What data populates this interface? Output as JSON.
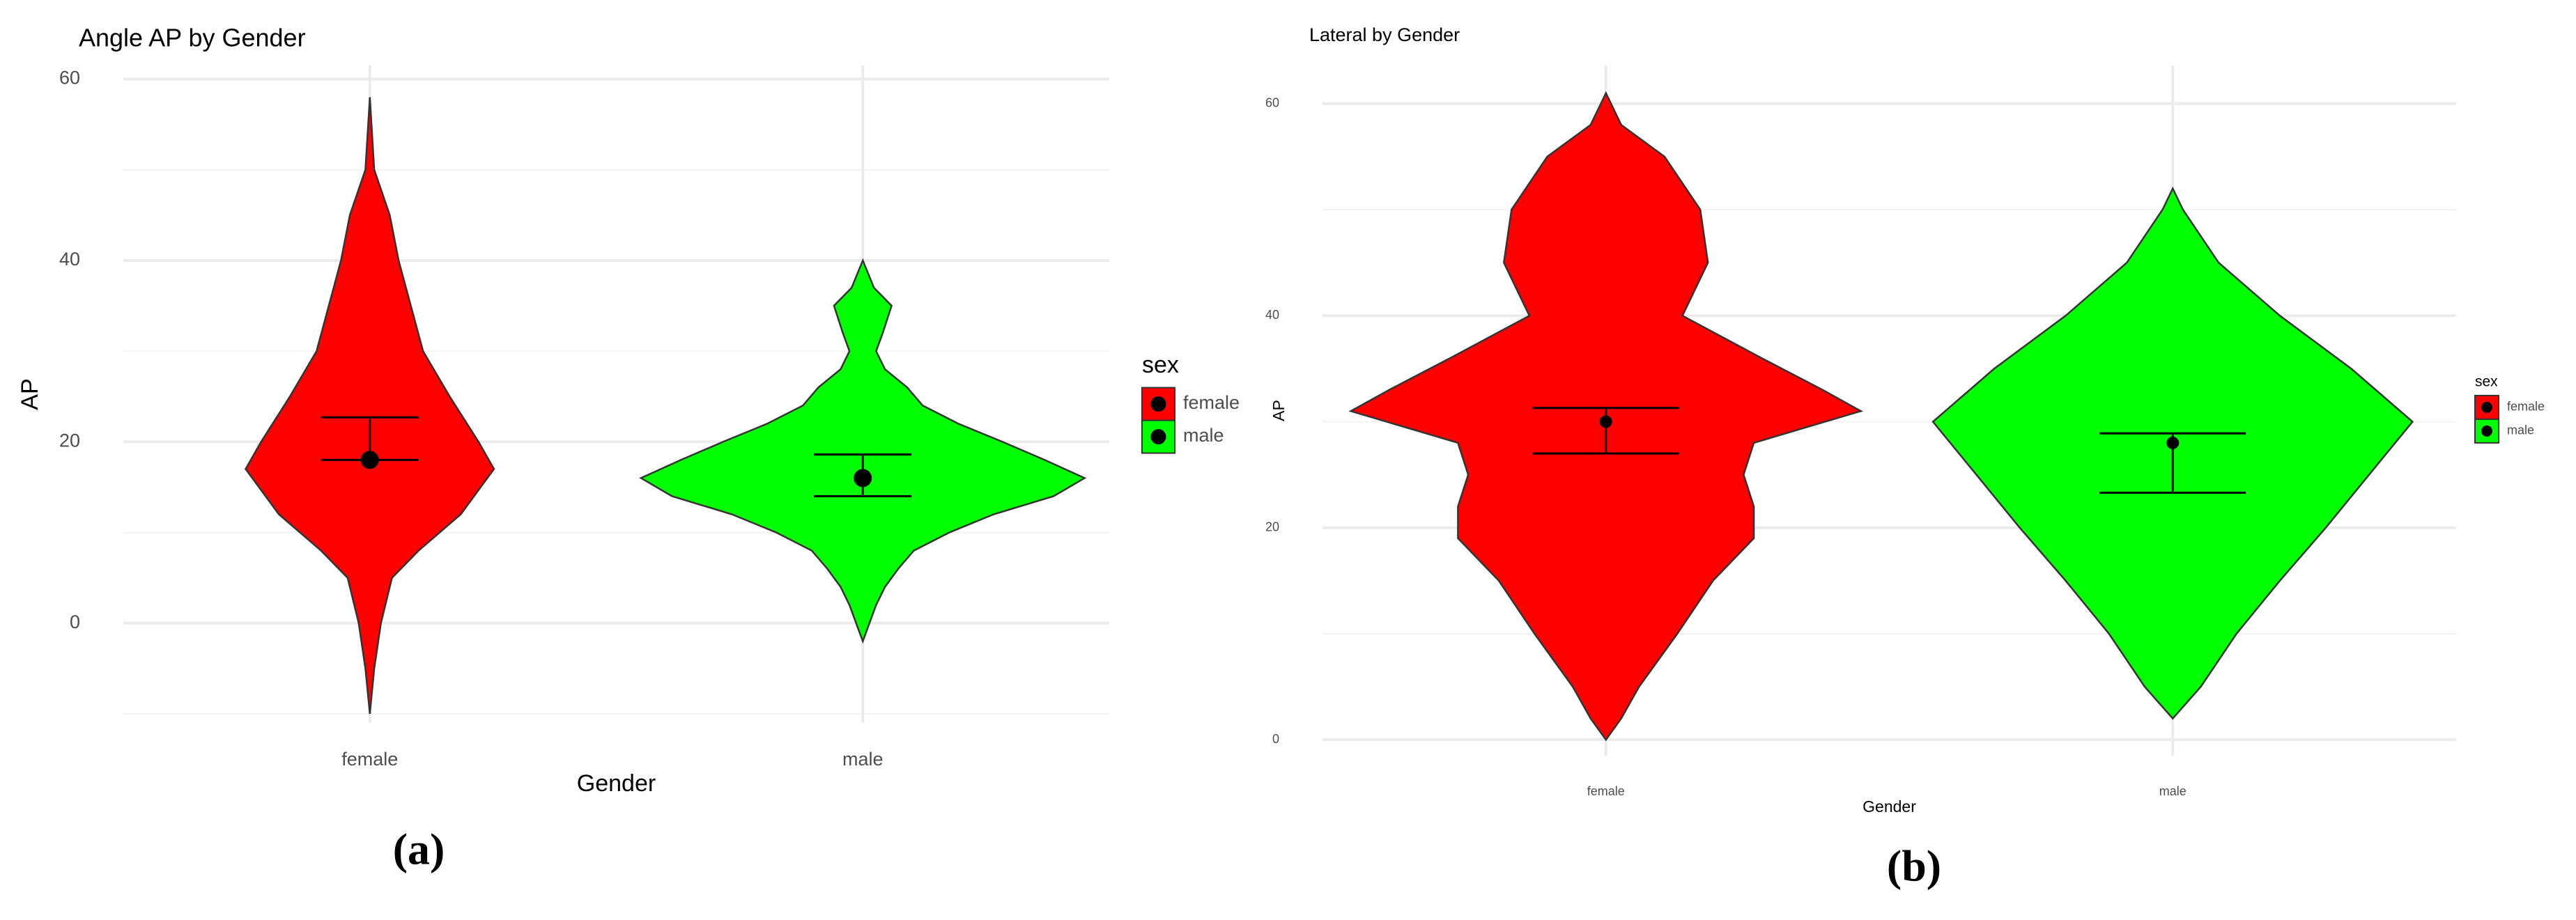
{
  "chart_data": [
    {
      "type": "violin",
      "title": "Angle AP by Gender",
      "x_label": "Gender",
      "y_label": "AP",
      "panel_label": "(a)",
      "legend_title": "sex",
      "categories": [
        "female",
        "male"
      ],
      "ylim": [
        -11,
        61.5
      ],
      "yticks": [
        0,
        20,
        40,
        60
      ],
      "minor_yticks": [
        -10,
        10,
        30,
        50
      ],
      "grid": true,
      "series": [
        {
          "name": "female",
          "color": "#ff0000",
          "mean": 18,
          "lower": 18,
          "upper": 22.7,
          "violin": {
            "y": [
              -10,
              -5,
              0,
              5,
              8,
              12,
              17,
              20,
              25,
              30,
              40,
              45,
              50,
              58
            ],
            "width": [
              0,
              0.02,
              0.05,
              0.1,
              0.22,
              0.41,
              0.56,
              0.49,
              0.36,
              0.24,
              0.13,
              0.09,
              0.02,
              0
            ]
          }
        },
        {
          "name": "male",
          "color": "#00ff00",
          "mean": 16,
          "lower": 14,
          "upper": 18.6,
          "violin": {
            "y": [
              -2,
              0,
              2,
              4,
              6,
              8,
              10,
              12,
              14,
              16,
              18,
              20,
              22,
              24,
              26,
              28,
              30,
              32,
              35,
              37,
              40
            ],
            "width": [
              0,
              0.03,
              0.06,
              0.1,
              0.16,
              0.23,
              0.39,
              0.59,
              0.86,
              1,
              0.82,
              0.63,
              0.43,
              0.27,
              0.2,
              0.1,
              0.06,
              0.09,
              0.13,
              0.05,
              0
            ]
          }
        }
      ]
    },
    {
      "type": "violin",
      "title": "Lateral by Gender",
      "x_label": "Gender",
      "y_label": "AP",
      "panel_label": "(b)",
      "legend_title": "sex",
      "categories": [
        "female",
        "male"
      ],
      "ylim": [
        -1.5,
        63.6
      ],
      "yticks": [
        0,
        20,
        40,
        60
      ],
      "minor_yticks": [
        10,
        30,
        50
      ],
      "grid": true,
      "series": [
        {
          "name": "female",
          "color": "#ff0000",
          "mean": 30,
          "lower": 27,
          "upper": 31.3,
          "violin": {
            "y": [
              0,
              2,
              5,
              10,
              15,
              19,
              22,
              25,
              28,
              31,
              33,
              36,
              40,
              45,
              50,
              55,
              58,
              61
            ],
            "width": [
              0,
              0.06,
              0.13,
              0.28,
              0.42,
              0.58,
              0.58,
              0.54,
              0.58,
              1,
              0.85,
              0.61,
              0.3,
              0.4,
              0.37,
              0.23,
              0.06,
              0
            ]
          }
        },
        {
          "name": "male",
          "color": "#00ff00",
          "mean": 28,
          "lower": 23.3,
          "upper": 28.9,
          "violin": {
            "y": [
              2,
              5,
              10,
              15,
              20,
              25,
              30,
              35,
              40,
              45,
              50,
              52
            ],
            "width": [
              0,
              0.11,
              0.25,
              0.42,
              0.6,
              0.77,
              0.94,
              0.7,
              0.42,
              0.18,
              0.04,
              0
            ]
          }
        }
      ]
    }
  ]
}
